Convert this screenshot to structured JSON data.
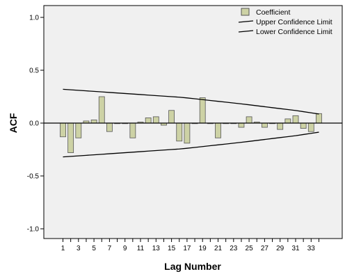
{
  "chart_data": {
    "type": "bar",
    "xlabel": "Lag Number",
    "ylabel": "ACF",
    "ylim": [
      -1.05,
      1.05
    ],
    "y_ticks": [
      1.0,
      0.5,
      0.0,
      -0.5,
      -1.0
    ],
    "y_tick_labels": [
      "1.0",
      "0.5",
      "0.0",
      "-0.5",
      "-1.0"
    ],
    "x_tick_labels": [
      "1",
      "3",
      "5",
      "7",
      "9",
      "11",
      "13",
      "15",
      "17",
      "19",
      "21",
      "23",
      "25",
      "27",
      "29",
      "31",
      "33"
    ],
    "lags": [
      1,
      2,
      3,
      4,
      5,
      6,
      7,
      8,
      9,
      10,
      11,
      12,
      13,
      14,
      15,
      16,
      17,
      18,
      19,
      20,
      21,
      22,
      23,
      24,
      25,
      26,
      27,
      28,
      29,
      30,
      31,
      32,
      33,
      34
    ],
    "legend_position": "top-right",
    "grid": false,
    "series": [
      {
        "name": "Coefficient",
        "color": "#cdd2a5",
        "values": [
          -0.13,
          -0.28,
          -0.14,
          0.02,
          0.03,
          0.25,
          -0.08,
          0.0,
          0.0,
          -0.14,
          0.01,
          0.05,
          0.06,
          -0.02,
          0.12,
          -0.17,
          -0.19,
          0.0,
          0.24,
          0.0,
          -0.14,
          0.0,
          0.0,
          -0.04,
          0.06,
          0.01,
          -0.04,
          0.0,
          -0.06,
          0.04,
          0.07,
          -0.05,
          -0.08,
          0.09
        ]
      },
      {
        "name": "Upper Confidence Limit",
        "color": "#000000",
        "values": [
          0.32,
          0.315,
          0.31,
          0.305,
          0.3,
          0.295,
          0.29,
          0.285,
          0.28,
          0.275,
          0.27,
          0.265,
          0.26,
          0.255,
          0.25,
          0.245,
          0.238,
          0.23,
          0.222,
          0.214,
          0.206,
          0.198,
          0.19,
          0.182,
          0.173,
          0.164,
          0.155,
          0.146,
          0.137,
          0.128,
          0.119,
          0.108,
          0.097,
          0.086
        ]
      },
      {
        "name": "Lower Confidence Limit",
        "color": "#000000",
        "values": [
          -0.32,
          -0.315,
          -0.31,
          -0.305,
          -0.3,
          -0.295,
          -0.29,
          -0.285,
          -0.28,
          -0.275,
          -0.27,
          -0.265,
          -0.26,
          -0.255,
          -0.25,
          -0.245,
          -0.238,
          -0.23,
          -0.222,
          -0.214,
          -0.206,
          -0.198,
          -0.19,
          -0.182,
          -0.173,
          -0.164,
          -0.155,
          -0.146,
          -0.137,
          -0.128,
          -0.119,
          -0.108,
          -0.097,
          -0.086
        ]
      }
    ]
  }
}
